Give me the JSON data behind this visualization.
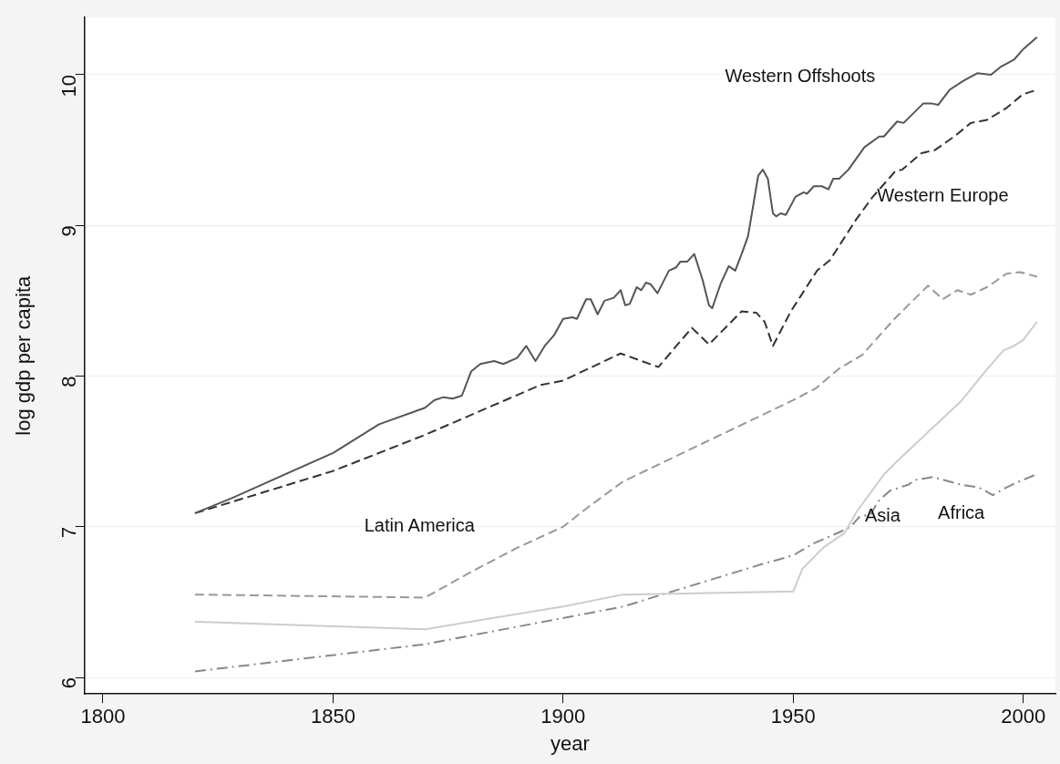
{
  "chart_data": {
    "type": "line",
    "xlabel": "year",
    "ylabel": "log gdp per capita",
    "xlim": [
      1796,
      2007
    ],
    "xticks": [
      1800,
      1850,
      1900,
      1950,
      2000
    ],
    "ylim": [
      5.89,
      10.38
    ],
    "yticks": [
      6,
      7,
      8,
      9,
      10
    ],
    "grid": "y",
    "legend": false,
    "marker": "none",
    "series": [
      {
        "name": "Western Offshoots",
        "color": "#555555",
        "line_style": "solid",
        "x": [
          1820,
          1828,
          1850,
          1860,
          1870,
          1872,
          1874,
          1876,
          1878,
          1880,
          1882,
          1885,
          1887,
          1890,
          1892,
          1894,
          1896,
          1898,
          1900,
          1902,
          1903,
          1905,
          1906,
          1907.5,
          1909,
          1911,
          1912.5,
          1913.5,
          1914.5,
          1916,
          1917,
          1918,
          1919,
          1920.5,
          1923,
          1924.5,
          1925.5,
          1927,
          1928.5,
          1930.3,
          1931.7,
          1932.4,
          1934.2,
          1936,
          1937.4,
          1938.8,
          1940.2,
          1942.4,
          1943.4,
          1944.5,
          1945.6,
          1946.3,
          1947.3,
          1948.4,
          1950.5,
          1952.3,
          1953,
          1954.5,
          1956.2,
          1957.7,
          1958.7,
          1960,
          1962,
          1965.5,
          1968.7,
          1969.7,
          1972.6,
          1974,
          1978.3,
          1980,
          1981.5,
          1984,
          1987,
          1990,
          1993,
          1995,
          1998,
          2000,
          2003
        ],
        "values": [
          7.09,
          7.19,
          7.49,
          7.68,
          7.79,
          7.84,
          7.86,
          7.85,
          7.87,
          8.03,
          8.08,
          8.1,
          8.08,
          8.12,
          8.2,
          8.1,
          8.2,
          8.27,
          8.38,
          8.39,
          8.38,
          8.51,
          8.51,
          8.41,
          8.5,
          8.52,
          8.57,
          8.47,
          8.48,
          8.59,
          8.57,
          8.62,
          8.61,
          8.55,
          8.7,
          8.72,
          8.76,
          8.76,
          8.81,
          8.64,
          8.47,
          8.45,
          8.61,
          8.73,
          8.7,
          8.81,
          8.93,
          9.33,
          9.37,
          9.31,
          9.08,
          9.06,
          9.08,
          9.07,
          9.19,
          9.22,
          9.21,
          9.26,
          9.26,
          9.24,
          9.31,
          9.31,
          9.37,
          9.52,
          9.59,
          9.59,
          9.69,
          9.68,
          9.81,
          9.81,
          9.8,
          9.9,
          9.96,
          10.01,
          10.0,
          10.05,
          10.1,
          10.17,
          10.25
        ]
      },
      {
        "name": "Western Europe",
        "color": "#333333",
        "line_style": "dashed",
        "x": [
          1820,
          1850,
          1870,
          1895,
          1900,
          1912.5,
          1920.7,
          1922.4,
          1924.6,
          1928,
          1931.7,
          1938.8,
          1942,
          1943.8,
          1945.6,
          1949.5,
          1955.2,
          1958,
          1963.7,
          1967.3,
          1972.2,
          1973.7,
          1977.9,
          1980.8,
          1985,
          1988.6,
          1992.1,
          1996.4,
          1999.9,
          2003
        ],
        "values": [
          7.09,
          7.37,
          7.61,
          7.94,
          7.97,
          8.15,
          8.06,
          8.12,
          8.2,
          8.32,
          8.21,
          8.43,
          8.42,
          8.36,
          8.2,
          8.43,
          8.7,
          8.77,
          9.04,
          9.19,
          9.36,
          9.37,
          9.48,
          9.5,
          9.59,
          9.68,
          9.7,
          9.78,
          9.87,
          9.9
        ]
      },
      {
        "name": "Latin America",
        "color": "#999999",
        "line_style": "dashed",
        "x": [
          1820,
          1870,
          1880,
          1890,
          1900,
          1905,
          1913,
          1950,
          1955,
          1960,
          1965,
          1972,
          1979.3,
          1982.5,
          1985.7,
          1988.6,
          1992.1,
          1996.4,
          1999.3,
          2003
        ],
        "values": [
          6.55,
          6.53,
          6.7,
          6.86,
          7.0,
          7.12,
          7.3,
          7.84,
          7.92,
          8.05,
          8.14,
          8.38,
          8.6,
          8.51,
          8.57,
          8.54,
          8.59,
          8.68,
          8.69,
          8.66
        ]
      },
      {
        "name": "Asia",
        "color": "#cccccc",
        "line_style": "solid",
        "x": [
          1820,
          1870,
          1900,
          1913,
          1950,
          1952,
          1956.5,
          1961.2,
          1963.8,
          1969.8,
          1973.1,
          1980.4,
          1986.4,
          1991.7,
          1995.7,
          1998,
          2000,
          2003
        ],
        "values": [
          6.37,
          6.32,
          6.47,
          6.55,
          6.57,
          6.72,
          6.86,
          6.96,
          7.1,
          7.35,
          7.45,
          7.66,
          7.83,
          8.03,
          8.17,
          8.2,
          8.24,
          8.36
        ]
      },
      {
        "name": "Africa",
        "color": "#888888",
        "line_style": "dashdot",
        "x": [
          1820,
          1870,
          1913,
          1943,
          1950,
          1954.5,
          1960.5,
          1962.5,
          1964.5,
          1966.8,
          1968.5,
          1971.1,
          1975.1,
          1976.4,
          1980.4,
          1986.4,
          1990.4,
          1993.4,
          1995.7,
          1998.3,
          2003
        ],
        "values": [
          6.04,
          6.22,
          6.47,
          6.75,
          6.81,
          6.89,
          6.97,
          7.0,
          7.07,
          7.08,
          7.17,
          7.24,
          7.28,
          7.31,
          7.33,
          7.28,
          7.26,
          7.21,
          7.25,
          7.29,
          7.35
        ]
      }
    ]
  }
}
